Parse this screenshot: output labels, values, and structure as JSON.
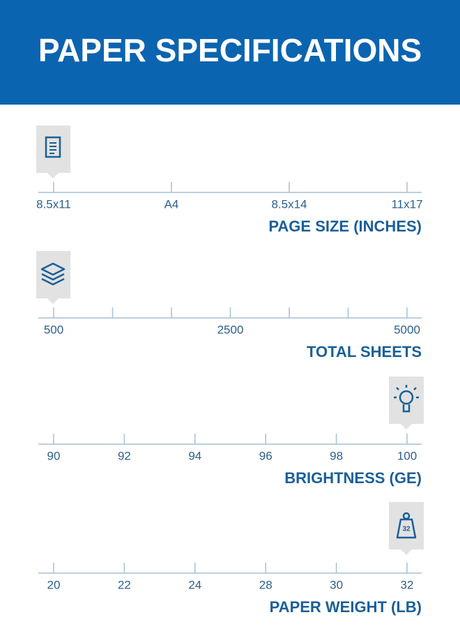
{
  "header": {
    "title": "PAPER SPECIFICATIONS"
  },
  "scales": [
    {
      "title": "PAGE SIZE (INCHES)",
      "labels": [
        "8.5x11",
        "A4",
        "8.5x14",
        "11x17"
      ]
    },
    {
      "title": "TOTAL SHEETS",
      "labels": [
        "500",
        null,
        null,
        "2500",
        null,
        null,
        "5000"
      ]
    },
    {
      "title": "BRIGHTNESS (GE)",
      "labels": [
        "90",
        "92",
        "94",
        "96",
        "98",
        "100"
      ]
    },
    {
      "title": "PAPER WEIGHT (LB)",
      "labels": [
        "20",
        "22",
        "24",
        "28",
        "30",
        "32"
      ],
      "icon_label": "32"
    }
  ]
}
